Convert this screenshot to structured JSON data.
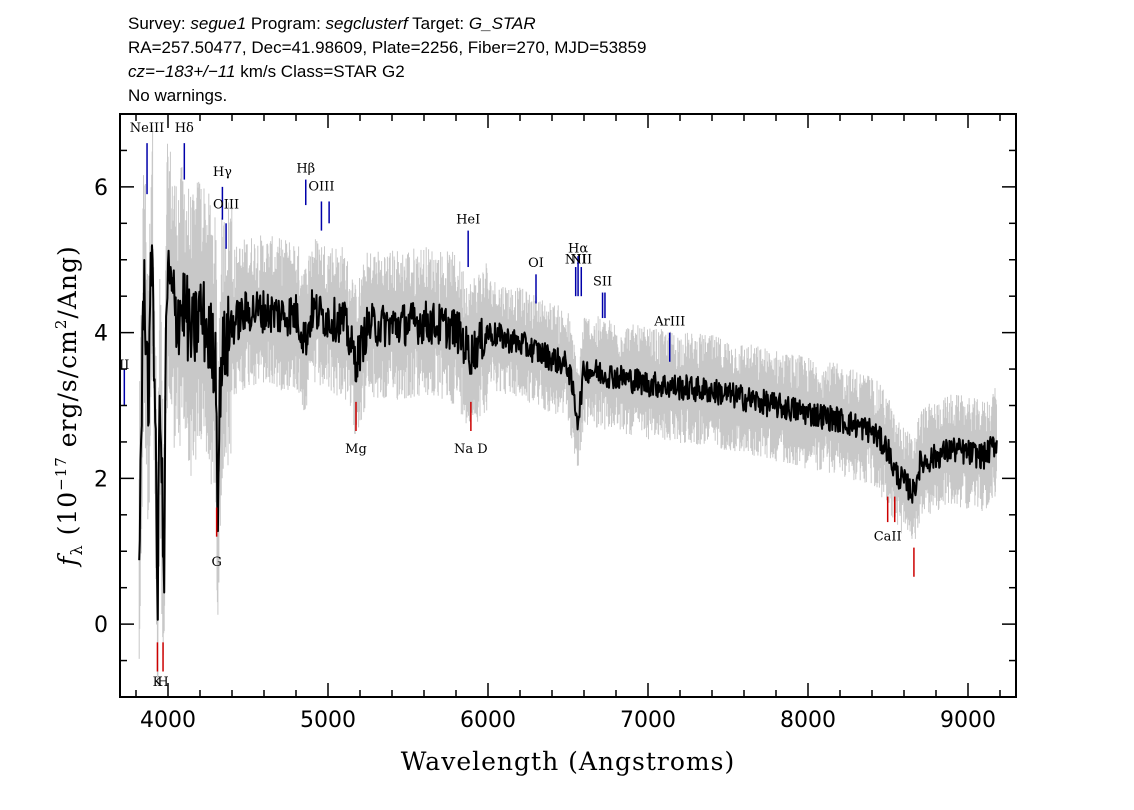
{
  "header": {
    "survey_label": "Survey:",
    "survey": "segue1",
    "program_label": "Program:",
    "program": "segclusterf",
    "target_label": "Target:",
    "target": "G_STAR",
    "line2": "RA=257.50477, Dec=41.98609, Plate=2256, Fiber=270, MJD=53859",
    "cz_label": "cz=",
    "cz_value": "−183+/−11",
    "cz_rest": "km/s Class=STAR G2",
    "line4": "No warnings."
  },
  "chart_data": {
    "type": "line",
    "title": "",
    "xlabel": "Wavelength (Angstroms)",
    "ylabel": "f_λ (10^-17 erg/s/cm^2/Ang)",
    "ylabel_parts": {
      "f": "f",
      "sub": "λ",
      "a": " (10",
      "exp1": "−17",
      "b": " erg/s/cm",
      "exp2": "2",
      "c": "/Ang)"
    },
    "xlim": [
      3700,
      9300
    ],
    "ylim": [
      -1.0,
      7.0
    ],
    "x_ticks": [
      4000,
      5000,
      6000,
      7000,
      8000,
      9000
    ],
    "x_tick_labels": [
      "4000",
      "5000",
      "6000",
      "7000",
      "8000",
      "9000"
    ],
    "y_ticks": [
      0,
      2,
      4,
      6
    ],
    "y_tick_labels": [
      "0",
      "2",
      "4",
      "6"
    ],
    "grid": false,
    "legend": "none",
    "colors": {
      "flux": "#000000",
      "noise_band": "#c8c8c8",
      "emission_line": "#0000aa",
      "absorption_line": "#cc0000"
    },
    "series": [
      {
        "role": "smoothed flux",
        "color": "#000000",
        "points": [
          [
            3820,
            1.0
          ],
          [
            3850,
            4.8
          ],
          [
            3880,
            3.0
          ],
          [
            3900,
            5.5
          ],
          [
            3920,
            2.8
          ],
          [
            3935,
            0.2
          ],
          [
            3950,
            3.5
          ],
          [
            3975,
            0.3
          ],
          [
            3990,
            4.6
          ],
          [
            4010,
            4.7
          ],
          [
            4050,
            4.2
          ],
          [
            4100,
            4.4
          ],
          [
            4150,
            3.9
          ],
          [
            4200,
            4.3
          ],
          [
            4250,
            4.0
          ],
          [
            4300,
            3.6
          ],
          [
            4310,
            1.6
          ],
          [
            4330,
            3.6
          ],
          [
            4400,
            4.1
          ],
          [
            4500,
            4.3
          ],
          [
            4600,
            4.3
          ],
          [
            4700,
            4.25
          ],
          [
            4800,
            4.25
          ],
          [
            4860,
            3.9
          ],
          [
            4900,
            4.3
          ],
          [
            5000,
            4.2
          ],
          [
            5100,
            4.15
          ],
          [
            5175,
            3.6
          ],
          [
            5250,
            4.1
          ],
          [
            5400,
            4.1
          ],
          [
            5600,
            4.15
          ],
          [
            5800,
            4.05
          ],
          [
            5890,
            3.7
          ],
          [
            6000,
            4.0
          ],
          [
            6200,
            3.85
          ],
          [
            6400,
            3.65
          ],
          [
            6500,
            3.55
          ],
          [
            6563,
            2.8
          ],
          [
            6600,
            3.5
          ],
          [
            6800,
            3.4
          ],
          [
            7000,
            3.3
          ],
          [
            7200,
            3.25
          ],
          [
            7400,
            3.2
          ],
          [
            7600,
            3.1
          ],
          [
            7800,
            3.0
          ],
          [
            8000,
            2.9
          ],
          [
            8200,
            2.8
          ],
          [
            8400,
            2.65
          ],
          [
            8500,
            2.4
          ],
          [
            8540,
            2.1
          ],
          [
            8660,
            1.8
          ],
          [
            8700,
            2.2
          ],
          [
            8800,
            2.3
          ],
          [
            8900,
            2.4
          ],
          [
            9000,
            2.35
          ],
          [
            9100,
            2.3
          ],
          [
            9180,
            2.5
          ]
        ]
      }
    ],
    "line_markers": [
      {
        "label": "NeIII",
        "wavelength": 3869,
        "kind": "emission",
        "y0": 5.9,
        "y1": 6.6,
        "label_y": 6.75
      },
      {
        "label": "Hδ",
        "wavelength": 4102,
        "kind": "emission",
        "y0": 6.1,
        "y1": 6.6,
        "label_y": 6.75
      },
      {
        "label": "Hγ",
        "wavelength": 4340,
        "kind": "emission",
        "y0": 5.55,
        "y1": 6.0,
        "label_y": 6.15
      },
      {
        "label": "OIII",
        "wavelength": 4363,
        "kind": "emission",
        "y0": 5.15,
        "y1": 5.5,
        "label_y": 5.7
      },
      {
        "label": "Hβ",
        "wavelength": 4861,
        "kind": "emission",
        "y0": 5.75,
        "y1": 6.1,
        "label_y": 6.2
      },
      {
        "label": "OIII",
        "wavelength": 4959,
        "kind": "emission",
        "y0": 5.4,
        "y1": 5.8,
        "label_y": 5.95
      },
      {
        "label": "",
        "wavelength": 5007,
        "kind": "emission",
        "y0": 5.5,
        "y1": 5.8,
        "label_y": 0
      },
      {
        "label": "HeI",
        "wavelength": 5876,
        "kind": "emission",
        "y0": 4.9,
        "y1": 5.4,
        "label_y": 5.5
      },
      {
        "label": "OI",
        "wavelength": 6300,
        "kind": "emission",
        "y0": 4.4,
        "y1": 4.8,
        "label_y": 4.9
      },
      {
        "label": "NII",
        "wavelength": 6548,
        "kind": "emission",
        "y0": 4.5,
        "y1": 4.9,
        "label_y": 4.95
      },
      {
        "label": "Hα",
        "wavelength": 6563,
        "kind": "emission",
        "y0": 4.5,
        "y1": 5.05,
        "label_y": 5.1
      },
      {
        "label": "NII",
        "wavelength": 6583,
        "kind": "emission",
        "y0": 4.5,
        "y1": 4.9,
        "label_y": 4.95
      },
      {
        "label": "SII",
        "wavelength": 6716,
        "kind": "emission",
        "y0": 4.2,
        "y1": 4.55,
        "label_y": 4.65
      },
      {
        "label": "",
        "wavelength": 6731,
        "kind": "emission",
        "y0": 4.2,
        "y1": 4.55,
        "label_y": 0
      },
      {
        "label": "ArIII",
        "wavelength": 7136,
        "kind": "emission",
        "y0": 3.6,
        "y1": 4.0,
        "label_y": 4.1
      },
      {
        "label": "II",
        "wavelength": 3727,
        "kind": "emission",
        "y0": 3.0,
        "y1": 3.5,
        "label_y": 3.5
      },
      {
        "label": "Mg",
        "wavelength": 5175,
        "kind": "absorption",
        "y0": 2.65,
        "y1": 3.05,
        "label_y": 2.35
      },
      {
        "label": "Na D",
        "wavelength": 5893,
        "kind": "absorption",
        "y0": 2.65,
        "y1": 3.05,
        "label_y": 2.35
      },
      {
        "label": "G",
        "wavelength": 4304,
        "kind": "absorption",
        "y0": 1.2,
        "y1": 1.6,
        "label_y": 0.8
      },
      {
        "label": "K",
        "wavelength": 3934,
        "kind": "absorption",
        "y0": -0.65,
        "y1": -0.25,
        "label_y": -0.85
      },
      {
        "label": "H",
        "wavelength": 3969,
        "kind": "absorption",
        "y0": -0.65,
        "y1": -0.25,
        "label_y": -0.85
      },
      {
        "label": "CaII",
        "wavelength": 8498,
        "kind": "absorption",
        "y0": 1.4,
        "y1": 1.75,
        "label_y": 1.15
      },
      {
        "label": "",
        "wavelength": 8542,
        "kind": "absorption",
        "y0": 1.4,
        "y1": 1.75,
        "label_y": 0
      },
      {
        "label": "",
        "wavelength": 8662,
        "kind": "absorption",
        "y0": 0.65,
        "y1": 1.05,
        "label_y": 0
      }
    ]
  }
}
